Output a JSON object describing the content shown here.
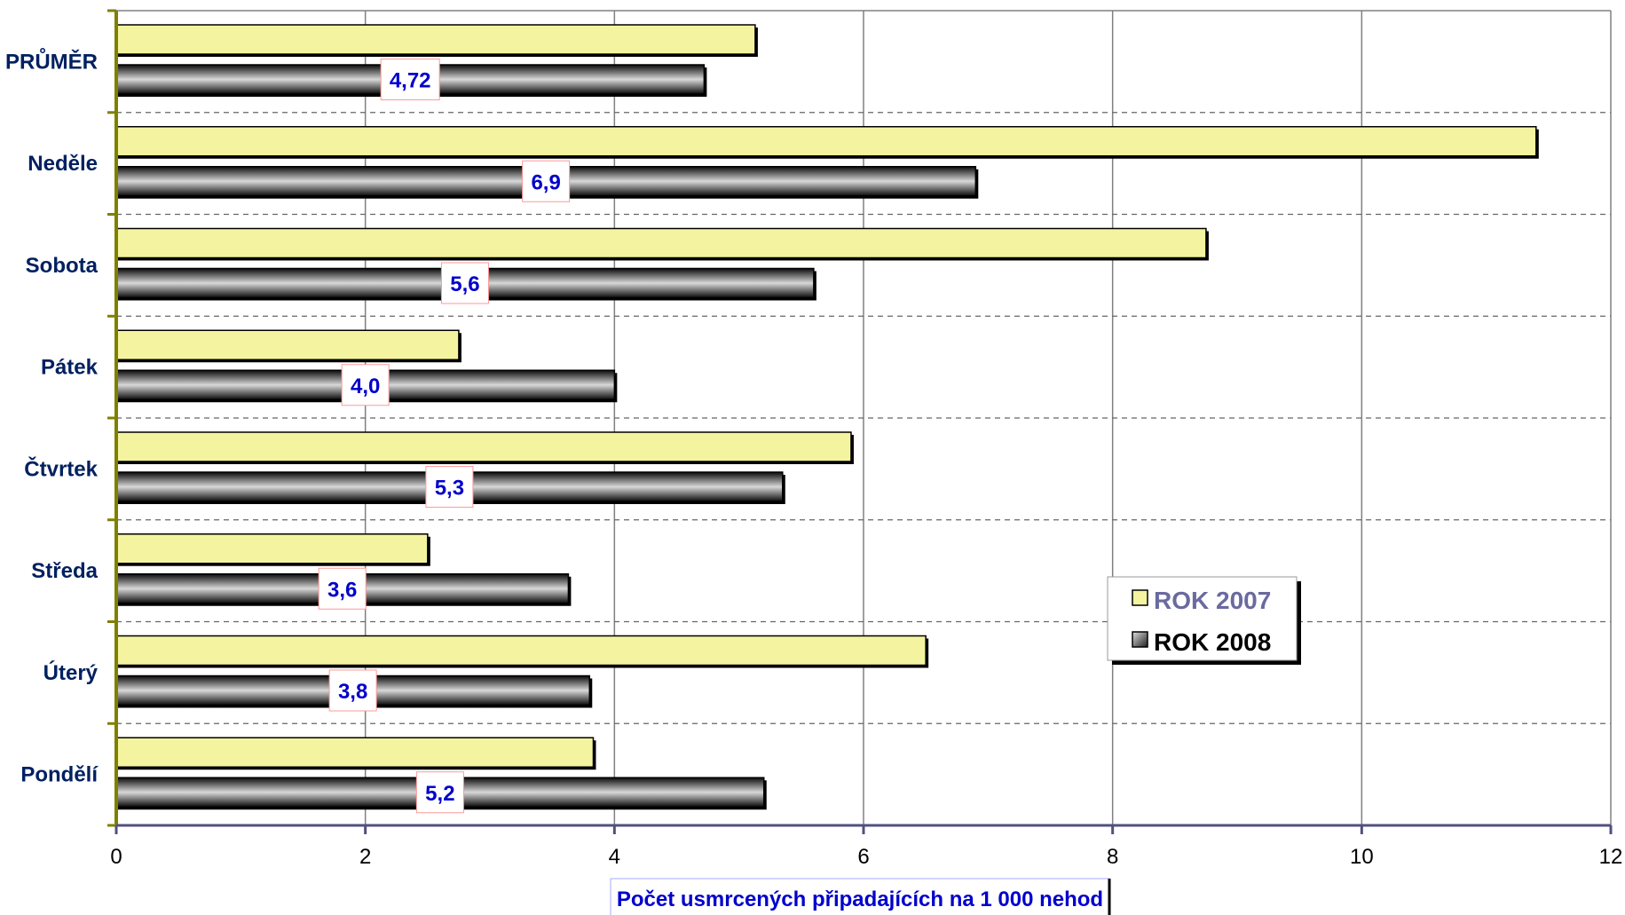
{
  "chart_data": {
    "type": "bar",
    "orientation": "horizontal",
    "categories": [
      "PRŮMĚR",
      "Neděle",
      "Sobota",
      "Pátek",
      "Čtvrtek",
      "Středa",
      "Úterý",
      "Pondělí"
    ],
    "series": [
      {
        "name": "ROK 2007",
        "color": "#f4f4a0",
        "values": [
          5.13,
          11.4,
          8.75,
          2.75,
          5.9,
          2.5,
          6.5,
          3.83
        ]
      },
      {
        "name": "ROK 2008",
        "color": "#444444",
        "values": [
          4.72,
          6.9,
          5.6,
          4.0,
          5.35,
          3.63,
          3.8,
          5.2
        ],
        "data_labels": [
          "4,72",
          "6,9",
          "5,6",
          "4,0",
          "5,3",
          "3,6",
          "3,8",
          "5,2"
        ]
      }
    ],
    "xlabel": "Počet usmrcených připadajících na 1 000 nehod",
    "xlim": [
      0,
      12
    ],
    "xticks": [
      0,
      2,
      4,
      6,
      8,
      10,
      12
    ],
    "grid": {
      "vertical": true,
      "horizontal_dashed": true
    },
    "legend_position": "right-lower"
  }
}
